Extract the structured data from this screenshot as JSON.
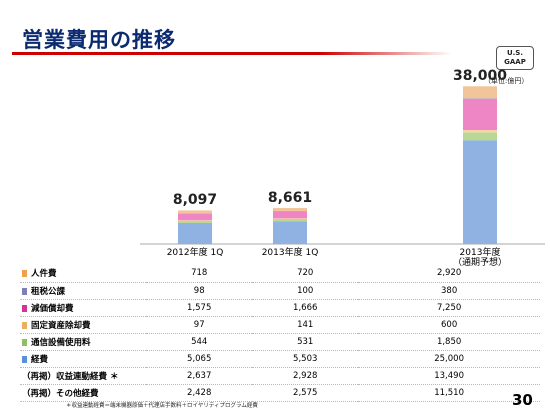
{
  "header": {
    "title": "営業費用の推移"
  },
  "badge": {
    "line1": "U.S.",
    "line2": "GAAP"
  },
  "unit_note": "（単位:億円）",
  "chart_data": {
    "type": "bar",
    "stacked": true,
    "categories": [
      "2012年度 1Q",
      "2013年度 1Q",
      "2013年度（通期予想）"
    ],
    "category_lines": [
      [
        "2012年度 1Q"
      ],
      [
        "2013年度 1Q"
      ],
      [
        "2013年度",
        "（通期予想）"
      ]
    ],
    "totals": [
      "8,097",
      "8,661",
      "38,000"
    ],
    "total_values": [
      8097,
      8661,
      38000
    ],
    "series": [
      {
        "name": "経費",
        "values": [
          5065,
          5503,
          25000
        ],
        "color": "#8fb2e2"
      },
      {
        "name": "通信設備使用料",
        "values": [
          544,
          531,
          1850
        ],
        "color": "#b9d795"
      },
      {
        "name": "固定資産除却費",
        "values": [
          97,
          141,
          600
        ],
        "color": "#f5d6a4"
      },
      {
        "name": "減価償却費",
        "values": [
          1575,
          1666,
          7250
        ],
        "color": "#ee86c6"
      },
      {
        "name": "租税公課",
        "values": [
          98,
          100,
          380
        ],
        "color": "#a9a9cf"
      },
      {
        "name": "人件費",
        "values": [
          718,
          720,
          2920
        ],
        "color": "#f2c49a"
      }
    ],
    "ylim": [
      0,
      40000
    ]
  },
  "table": {
    "rows": [
      {
        "label": "人件費",
        "swatch": "#eea050",
        "values": [
          "718",
          "720",
          "2,920"
        ]
      },
      {
        "label": "租税公課",
        "swatch": "#7f7fb8",
        "values": [
          "98",
          "100",
          "380"
        ]
      },
      {
        "label": "減価償却費",
        "swatch": "#d0359a",
        "values": [
          "1,575",
          "1,666",
          "7,250"
        ]
      },
      {
        "label": "固定資産除却費",
        "swatch": "#e8b060",
        "values": [
          "97",
          "141",
          "600"
        ]
      },
      {
        "label": "通信設備使用料",
        "swatch": "#8cc060",
        "values": [
          "544",
          "531",
          "1,850"
        ]
      },
      {
        "label": "経費",
        "swatch": "#5b8fd6",
        "values": [
          "5,065",
          "5,503",
          "25,000"
        ]
      },
      {
        "label": "（再掲）収益連動経費 ＊",
        "swatch": "",
        "values": [
          "2,637",
          "2,928",
          "13,490"
        ]
      },
      {
        "label": "（再掲）その他経費",
        "swatch": "",
        "values": [
          "2,428",
          "2,575",
          "11,510"
        ]
      }
    ]
  },
  "footnote": "＊収益連動経費＝端末機器原価＋代理店手数料＋ロイヤリティプログラム経費",
  "page_number": "30"
}
